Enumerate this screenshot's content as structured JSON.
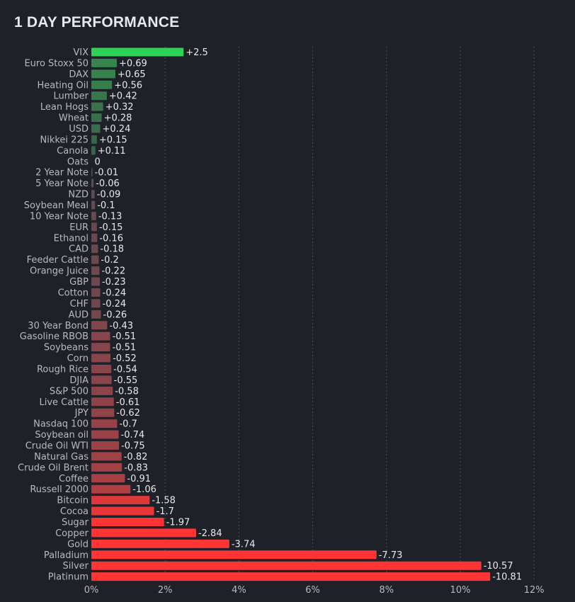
{
  "title": "1 DAY PERFORMANCE",
  "colors": {
    "background": "#1f2129",
    "positive_max": "#2fd158",
    "positive_min": "#3b5a48",
    "negative_min": "#5e4a52",
    "negative_max": "#ff3434"
  },
  "chart_data": {
    "type": "bar",
    "orientation": "horizontal",
    "title": "1 DAY PERFORMANCE",
    "xlabel": "",
    "ylabel": "",
    "xlim": [
      0,
      12
    ],
    "x_ticks": [
      "0%",
      "2%",
      "4%",
      "6%",
      "8%",
      "10%",
      "12%"
    ],
    "x_tick_values": [
      0,
      2,
      4,
      6,
      8,
      10,
      12
    ],
    "grid": true,
    "categories": [
      "VIX",
      "Euro Stoxx 50",
      "DAX",
      "Heating Oil",
      "Lumber",
      "Lean Hogs",
      "Wheat",
      "USD",
      "Nikkei 225",
      "Canola",
      "Oats",
      "2 Year Note",
      "5 Year Note",
      "NZD",
      "Soybean Meal",
      "10 Year Note",
      "EUR",
      "Ethanol",
      "CAD",
      "Feeder Cattle",
      "Orange Juice",
      "GBP",
      "Cotton",
      "CHF",
      "AUD",
      "30 Year Bond",
      "Gasoline RBOB",
      "Soybeans",
      "Corn",
      "Rough Rice",
      "DJIA",
      "S&P 500",
      "Live Cattle",
      "JPY",
      "Nasdaq 100",
      "Soybean oil",
      "Crude Oil WTI",
      "Natural Gas",
      "Crude Oil Brent",
      "Coffee",
      "Russell 2000",
      "Bitcoin",
      "Cocoa",
      "Sugar",
      "Copper",
      "Gold",
      "Palladium",
      "Silver",
      "Platinum"
    ],
    "values": [
      2.5,
      0.69,
      0.65,
      0.56,
      0.42,
      0.32,
      0.28,
      0.24,
      0.15,
      0.11,
      0,
      -0.01,
      -0.06,
      -0.09,
      -0.1,
      -0.13,
      -0.15,
      -0.16,
      -0.18,
      -0.2,
      -0.22,
      -0.23,
      -0.24,
      -0.24,
      -0.26,
      -0.43,
      -0.51,
      -0.51,
      -0.52,
      -0.54,
      -0.55,
      -0.58,
      -0.61,
      -0.62,
      -0.7,
      -0.74,
      -0.75,
      -0.82,
      -0.83,
      -0.91,
      -1.06,
      -1.58,
      -1.7,
      -1.97,
      -2.84,
      -3.74,
      -7.73,
      -10.57,
      -10.81
    ],
    "value_labels": [
      "+2.5",
      "+0.69",
      "+0.65",
      "+0.56",
      "+0.42",
      "+0.32",
      "+0.28",
      "+0.24",
      "+0.15",
      "+0.11",
      "0",
      "-0.01",
      "-0.06",
      "-0.09",
      "-0.1",
      "-0.13",
      "-0.15",
      "-0.16",
      "-0.18",
      "-0.2",
      "-0.22",
      "-0.23",
      "-0.24",
      "-0.24",
      "-0.26",
      "-0.43",
      "-0.51",
      "-0.51",
      "-0.52",
      "-0.54",
      "-0.55",
      "-0.58",
      "-0.61",
      "-0.62",
      "-0.7",
      "-0.74",
      "-0.75",
      "-0.82",
      "-0.83",
      "-0.91",
      "-1.06",
      "-1.58",
      "-1.7",
      "-1.97",
      "-2.84",
      "-3.74",
      "-7.73",
      "-10.57",
      "-10.81"
    ],
    "bar_length": "absolute value"
  }
}
